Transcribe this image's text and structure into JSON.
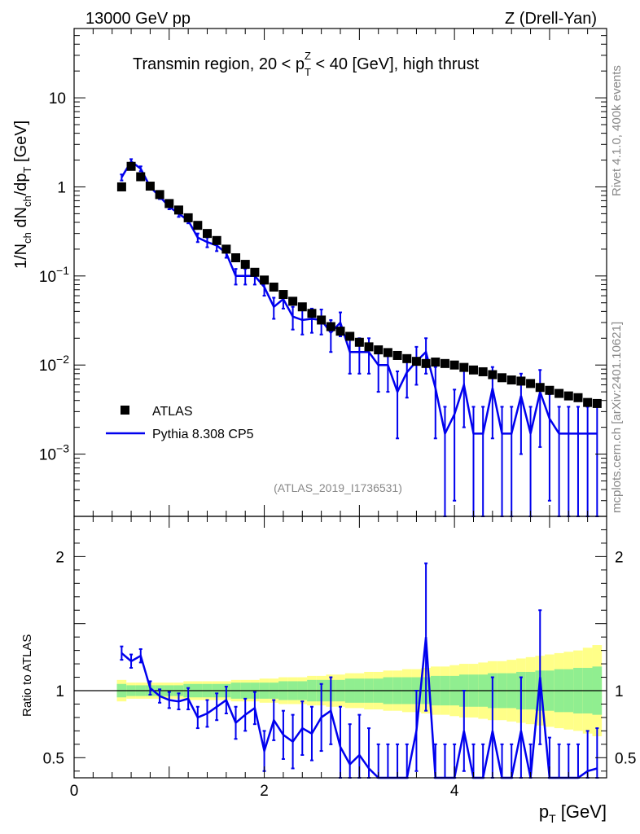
{
  "header": {
    "left": "13000 GeV pp",
    "right": "Z (Drell-Yan)",
    "title_main": "Transmin region, 20 < p",
    "title_sup": "Z",
    "title_sub": "T",
    "title_tail": " < 40 [GeV], high thrust",
    "side_top": "Rivet 4.1.0,  400k events",
    "side_bottom": "mcplots.cern.ch [arXiv:2401.10621]",
    "analysis": "(ATLAS_2019_I1736531)"
  },
  "axes": {
    "ylabel_main": "1/N",
    "ylabel_main_sub1": "ch",
    "ylabel_main_mid": " dN",
    "ylabel_main_sub2": "ch",
    "ylabel_main_tail": "/dp",
    "ylabel_main_sub3": "T",
    "ylabel_main_unit": " [GeV]",
    "ylabel_ratio": "Ratio to ATLAS",
    "xlabel": "p",
    "xlabel_sub": "T",
    "xlabel_unit": " [GeV]",
    "main_yticks": [
      {
        "base": "10",
        "exp": "",
        "value": 10
      },
      {
        "base": "1",
        "exp": "",
        "value": 1
      },
      {
        "base": "10",
        "exp": "−1",
        "value": 0.1
      },
      {
        "base": "10",
        "exp": "−2",
        "value": 0.01
      },
      {
        "base": "10",
        "exp": "−3",
        "value": 0.001
      }
    ],
    "ratio_yticks": [
      "2",
      "1",
      "0.5"
    ],
    "ratio_ytick_values": [
      2,
      1,
      0.5
    ],
    "xticks": [
      "0",
      "2",
      "4"
    ],
    "xtick_values": [
      0,
      2,
      4
    ]
  },
  "legend": {
    "data_label": "ATLAS",
    "mc_label": "Pythia 8.308 CP5"
  },
  "colors": {
    "data": "#000000",
    "mc": "#0000ee",
    "band_inner": "#90ee90",
    "band_outer": "#ffff88"
  },
  "chart_data": {
    "type": "line",
    "title": "Transmin region, 20 < pT^Z < 40 [GeV], high thrust",
    "xlabel": "pT [GeV]",
    "ylabel": "1/Nch dNch/dpT [GeV]",
    "xlim": [
      0,
      5.6
    ],
    "ylim": [
      0.0002,
      60
    ],
    "yscale": "log",
    "ratio_ylim": [
      0.35,
      2.3
    ],
    "x": [
      0.5,
      0.6,
      0.7,
      0.8,
      0.9,
      1.0,
      1.1,
      1.2,
      1.3,
      1.4,
      1.5,
      1.6,
      1.7,
      1.8,
      1.9,
      2.0,
      2.1,
      2.2,
      2.3,
      2.4,
      2.5,
      2.6,
      2.7,
      2.8,
      2.9,
      3.0,
      3.1,
      3.2,
      3.3,
      3.4,
      3.5,
      3.6,
      3.7,
      3.8,
      3.9,
      4.0,
      4.1,
      4.2,
      4.3,
      4.4,
      4.5,
      4.6,
      4.7,
      4.8,
      4.9,
      5.0,
      5.1,
      5.2,
      5.3,
      5.4,
      5.5
    ],
    "series": [
      {
        "name": "ATLAS",
        "values": [
          1.0,
          1.7,
          1.3,
          1.02,
          0.82,
          0.65,
          0.55,
          0.45,
          0.37,
          0.3,
          0.25,
          0.2,
          0.16,
          0.135,
          0.11,
          0.09,
          0.075,
          0.062,
          0.052,
          0.045,
          0.038,
          0.032,
          0.027,
          0.024,
          0.021,
          0.018,
          0.016,
          0.0148,
          0.0138,
          0.0128,
          0.0118,
          0.011,
          0.0104,
          0.0108,
          0.0104,
          0.01,
          0.0094,
          0.0088,
          0.0084,
          0.0078,
          0.0072,
          0.0068,
          0.0066,
          0.0062,
          0.0056,
          0.0052,
          0.0048,
          0.0045,
          0.0043,
          0.0038,
          0.0037
        ]
      },
      {
        "name": "Pythia 8.308 CP5",
        "values": [
          1.28,
          1.93,
          1.6,
          1.0,
          0.78,
          0.6,
          0.5,
          0.42,
          0.27,
          0.24,
          0.22,
          0.18,
          0.1,
          0.1,
          0.1,
          0.075,
          0.045,
          0.055,
          0.035,
          0.032,
          0.033,
          0.032,
          0.023,
          0.03,
          0.014,
          0.014,
          0.014,
          0.01,
          0.01,
          0.005,
          0.0083,
          0.011,
          0.014,
          0.0055,
          0.0017,
          0.0028,
          0.006,
          0.0017,
          0.0017,
          0.0055,
          0.0017,
          0.0017,
          0.0045,
          0.0017,
          0.005,
          0.0025,
          0.0017,
          0.0017,
          0.0017,
          0.0017,
          0.0017
        ],
        "errors": [
          0.1,
          0.12,
          0.1,
          0.06,
          0.05,
          0.04,
          0.04,
          0.03,
          0.03,
          0.03,
          0.03,
          0.02,
          0.02,
          0.02,
          0.02,
          0.015,
          0.012,
          0.012,
          0.01,
          0.01,
          0.01,
          0.01,
          0.009,
          0.009,
          0.006,
          0.006,
          0.006,
          0.005,
          0.005,
          0.0035,
          0.004,
          0.005,
          0.006,
          0.004,
          0.0017,
          0.0025,
          0.004,
          0.0017,
          0.0017,
          0.004,
          0.0017,
          0.0017,
          0.0035,
          0.0017,
          0.0038,
          0.0022,
          0.0017,
          0.0017,
          0.0017,
          0.0017,
          0.0017
        ]
      }
    ],
    "ratio": [
      1.28,
      1.22,
      1.26,
      1.02,
      0.96,
      0.93,
      0.92,
      0.94,
      0.8,
      0.83,
      0.88,
      0.93,
      0.76,
      0.82,
      0.87,
      0.55,
      0.78,
      0.67,
      0.62,
      0.72,
      0.68,
      0.8,
      0.85,
      0.58,
      0.45,
      0.52,
      0.42,
      0.3,
      0.3,
      0.3,
      0.3,
      0.7,
      1.4,
      0.3,
      0.3,
      0.3,
      0.7,
      0.3,
      0.3,
      0.7,
      0.3,
      0.3,
      0.7,
      0.3,
      1.1,
      0.35,
      0.3,
      0.3,
      0.3,
      0.4,
      0.42
    ],
    "ratio_errors": [
      0.05,
      0.05,
      0.05,
      0.05,
      0.05,
      0.06,
      0.06,
      0.08,
      0.08,
      0.1,
      0.1,
      0.1,
      0.12,
      0.12,
      0.12,
      0.15,
      0.15,
      0.18,
      0.2,
      0.2,
      0.2,
      0.25,
      0.25,
      0.3,
      0.3,
      0.3,
      0.3,
      0.3,
      0.3,
      0.3,
      0.3,
      0.3,
      0.55,
      0.3,
      0.3,
      0.3,
      0.3,
      0.3,
      0.3,
      0.4,
      0.3,
      0.3,
      0.4,
      0.3,
      0.5,
      0.3,
      0.3,
      0.3,
      0.3,
      0.3,
      0.3
    ],
    "band_inner": [
      0.05,
      0.04,
      0.04,
      0.04,
      0.04,
      0.04,
      0.04,
      0.05,
      0.05,
      0.05,
      0.05,
      0.05,
      0.06,
      0.06,
      0.06,
      0.06,
      0.06,
      0.07,
      0.07,
      0.07,
      0.08,
      0.08,
      0.08,
      0.08,
      0.09,
      0.09,
      0.09,
      0.09,
      0.1,
      0.1,
      0.1,
      0.1,
      0.1,
      0.11,
      0.11,
      0.11,
      0.12,
      0.12,
      0.12,
      0.13,
      0.13,
      0.13,
      0.14,
      0.14,
      0.15,
      0.15,
      0.16,
      0.16,
      0.17,
      0.17,
      0.18
    ],
    "band_outer": [
      0.08,
      0.06,
      0.06,
      0.06,
      0.06,
      0.06,
      0.06,
      0.07,
      0.07,
      0.07,
      0.07,
      0.07,
      0.08,
      0.08,
      0.08,
      0.09,
      0.09,
      0.1,
      0.1,
      0.1,
      0.11,
      0.11,
      0.12,
      0.12,
      0.13,
      0.13,
      0.14,
      0.14,
      0.15,
      0.15,
      0.16,
      0.16,
      0.17,
      0.18,
      0.18,
      0.19,
      0.2,
      0.2,
      0.21,
      0.22,
      0.22,
      0.23,
      0.24,
      0.25,
      0.26,
      0.27,
      0.28,
      0.29,
      0.3,
      0.32,
      0.34
    ]
  }
}
